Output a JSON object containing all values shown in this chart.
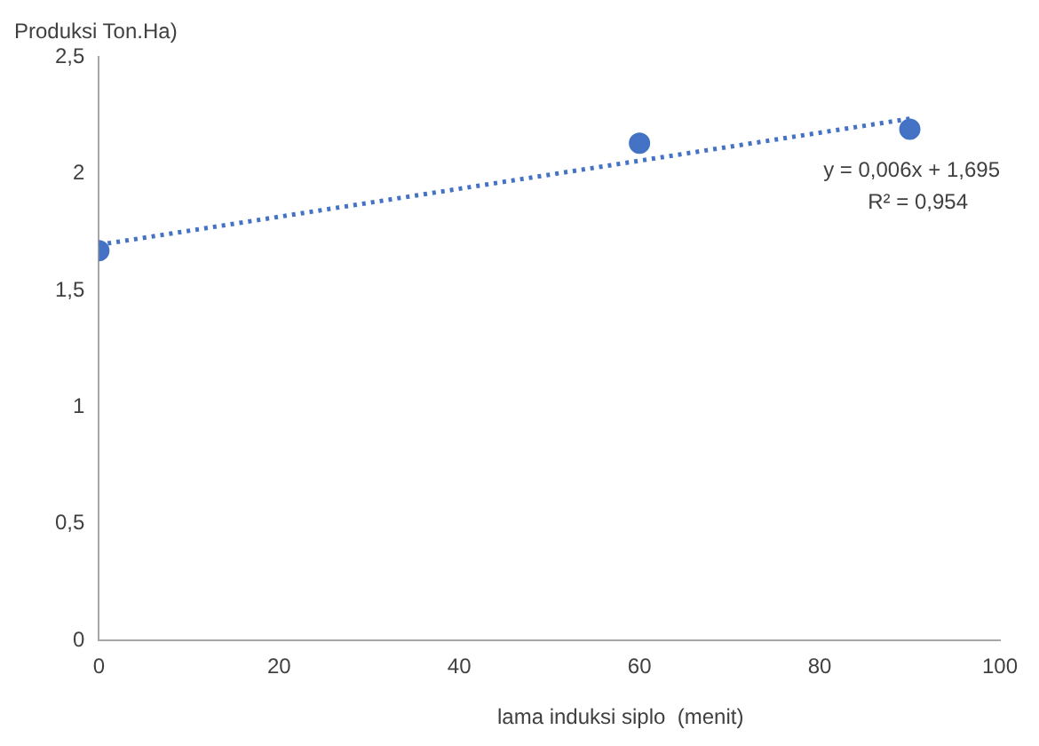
{
  "chart_data": {
    "type": "scatter",
    "ylabel": "Produksi Ton.Ha)",
    "xlabel": "lama induksi siplo  (menit)",
    "series": [
      {
        "type": "scatter",
        "color": "#4472c4",
        "x": [
          0,
          60,
          90
        ],
        "values": [
          1.67,
          2.13,
          2.19
        ],
        "marker": "circle"
      },
      {
        "type": "line",
        "color": "#4472c4",
        "x": [
          0,
          90
        ],
        "values": [
          1.695,
          2.235
        ],
        "line_style": "dotted",
        "marker": "none"
      }
    ],
    "annotations": [
      "y = 0,006x + 1,695",
      "R² = 0,954"
    ],
    "xlim": [
      0,
      100
    ],
    "xticks": [
      0,
      20,
      40,
      60,
      80,
      100
    ],
    "ylim": [
      0,
      2.5
    ],
    "yticks": [
      0,
      {
        "value": 0.5,
        "label": "0,5"
      },
      1,
      {
        "value": 1.5,
        "label": "1,5"
      },
      2,
      {
        "value": 2.5,
        "label": "2,5"
      }
    ],
    "grid": false,
    "legend": false
  }
}
